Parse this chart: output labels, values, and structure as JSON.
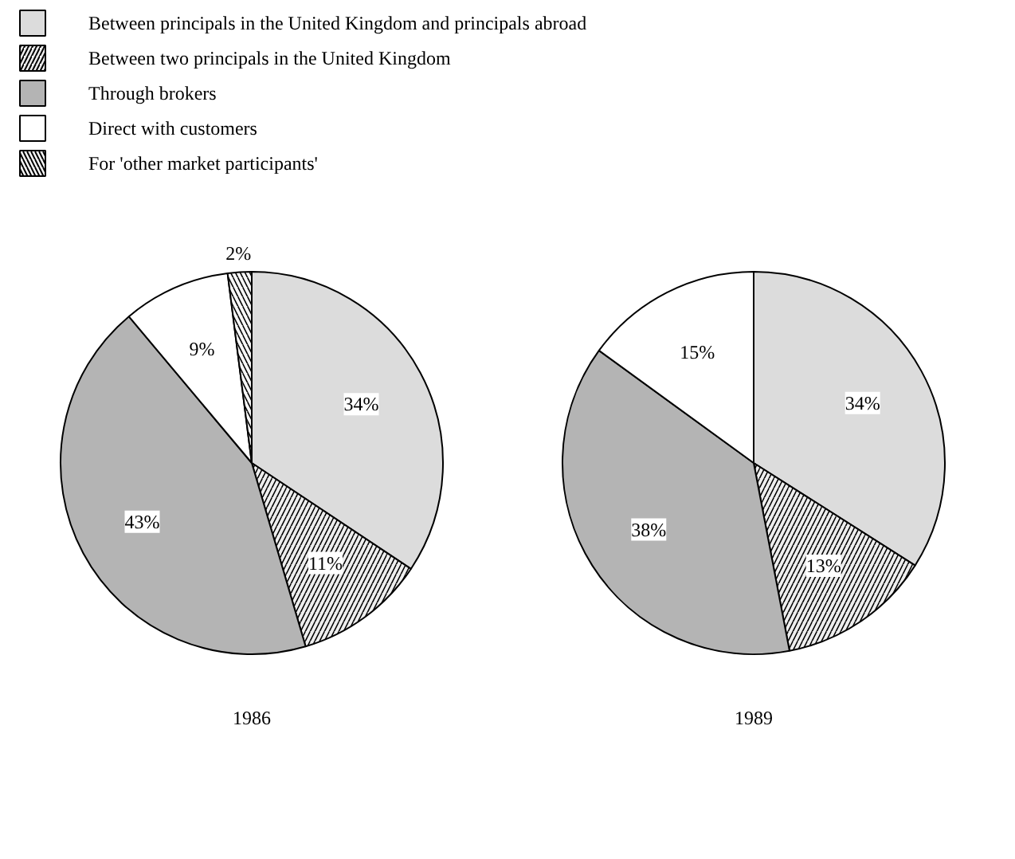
{
  "chart_data": [
    {
      "type": "pie",
      "title": "1986",
      "legend": "top",
      "data_labels": true,
      "categories": [
        "Between principals in the United Kingdom and principals abroad",
        "Between two principals in the United Kingdom",
        "Through brokers",
        "Direct with customers",
        "For 'other market participants'"
      ],
      "values": [
        34,
        11,
        43,
        9,
        2
      ],
      "value_labels": [
        "34%",
        "11%",
        "43%",
        "9%",
        "2%"
      ],
      "colors": [
        "#dcdcdc",
        "#eeeeee",
        "#b4b4b4",
        "#ffffff",
        "#f6f6f6"
      ]
    },
    {
      "type": "pie",
      "title": "1989",
      "data_labels": true,
      "categories": [
        null,
        null,
        null,
        null
      ],
      "values": [
        34,
        13,
        38,
        15
      ],
      "value_labels": [
        "34%",
        "13%",
        "38%",
        "15%"
      ],
      "colors": [
        "#dcdcdc",
        "#eeeeee",
        "#b4b4b4",
        "#ffffff"
      ]
    }
  ]
}
